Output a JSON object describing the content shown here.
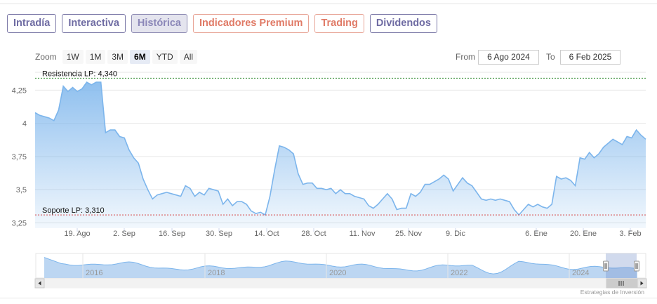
{
  "tabs": [
    {
      "label": "Intradía",
      "style": "purple"
    },
    {
      "label": "Interactiva",
      "style": "purple"
    },
    {
      "label": "Histórica",
      "style": "active"
    },
    {
      "label": "Indicadores Premium",
      "style": "salmon"
    },
    {
      "label": "Trading",
      "style": "salmon"
    },
    {
      "label": "Dividendos",
      "style": "purple"
    }
  ],
  "zoom": {
    "label": "Zoom",
    "buttons": [
      "1W",
      "1M",
      "3M",
      "6M",
      "YTD",
      "All"
    ],
    "selected": "6M"
  },
  "range": {
    "from_label": "From",
    "from_value": "6 Ago 2024",
    "to_label": "To",
    "to_value": "6 Feb 2025"
  },
  "chart_data": {
    "type": "area",
    "y_ticks": [
      "4,25",
      "4",
      "3,75",
      "3,5",
      "3,25"
    ],
    "y_tick_values": [
      4.25,
      4.0,
      3.75,
      3.5,
      3.25
    ],
    "ylim": [
      3.21,
      4.4
    ],
    "x_ticks": [
      "19. Ago",
      "2. Sep",
      "16. Sep",
      "30. Sep",
      "14. Oct",
      "28. Oct",
      "11. Nov",
      "25. Nov",
      "9. Dic",
      "6. Ene",
      "20. Ene",
      "3. Feb"
    ],
    "grid": true,
    "colors": {
      "line": "#7cb5ec",
      "fill_top": "#7cb5ec",
      "resistance": "#2e8b2e",
      "support": "#d43f3f"
    },
    "resistance": {
      "label": "Resistencia LP: 4,340",
      "value": 4.34
    },
    "support": {
      "label": "Soporte LP: 3,310",
      "value": 3.31
    },
    "series": [
      {
        "values": [
          4.08,
          4.06,
          4.05,
          4.04,
          4.02,
          4.1,
          4.28,
          4.24,
          4.27,
          4.24,
          4.26,
          4.31,
          4.29,
          4.31,
          4.31,
          3.93,
          3.95,
          3.95,
          3.9,
          3.89,
          3.8,
          3.74,
          3.7,
          3.58,
          3.5,
          3.43,
          3.46,
          3.47,
          3.48,
          3.47,
          3.46,
          3.45,
          3.53,
          3.51,
          3.45,
          3.48,
          3.46,
          3.51,
          3.5,
          3.49,
          3.39,
          3.43,
          3.38,
          3.41,
          3.41,
          3.39,
          3.34,
          3.32,
          3.33,
          3.31,
          3.45,
          3.65,
          3.83,
          3.82,
          3.8,
          3.77,
          3.62,
          3.54,
          3.55,
          3.55,
          3.51,
          3.51,
          3.5,
          3.51,
          3.47,
          3.5,
          3.47,
          3.47,
          3.45,
          3.44,
          3.43,
          3.38,
          3.36,
          3.39,
          3.43,
          3.47,
          3.43,
          3.35,
          3.36,
          3.36,
          3.47,
          3.45,
          3.48,
          3.54,
          3.54,
          3.56,
          3.58,
          3.61,
          3.58,
          3.49,
          3.54,
          3.59,
          3.55,
          3.53,
          3.48,
          3.43,
          3.42,
          3.43,
          3.42,
          3.43,
          3.42,
          3.41,
          3.35,
          3.31,
          3.35,
          3.39,
          3.37,
          3.39,
          3.37,
          3.36,
          3.39,
          3.6,
          3.58,
          3.59,
          3.57,
          3.53,
          3.74,
          3.73,
          3.78,
          3.74,
          3.77,
          3.82,
          3.85,
          3.88,
          3.86,
          3.84,
          3.9,
          3.89,
          3.95,
          3.91,
          3.88
        ]
      }
    ]
  },
  "navigator": {
    "x_labels": [
      "2016",
      "2018",
      "2020",
      "2022",
      "2024"
    ],
    "colors": {
      "line": "#7cb5ec",
      "fill": "#bcd6f2",
      "mask": "rgba(102,133,194,0.3)",
      "handle": "#f2f2f2"
    },
    "scroll_left_icon": "arrow-left-icon",
    "scroll_right_icon": "arrow-right-icon",
    "scroll_thumb_icon": "grip-icon"
  },
  "credit": "Estrategias de Inversión"
}
